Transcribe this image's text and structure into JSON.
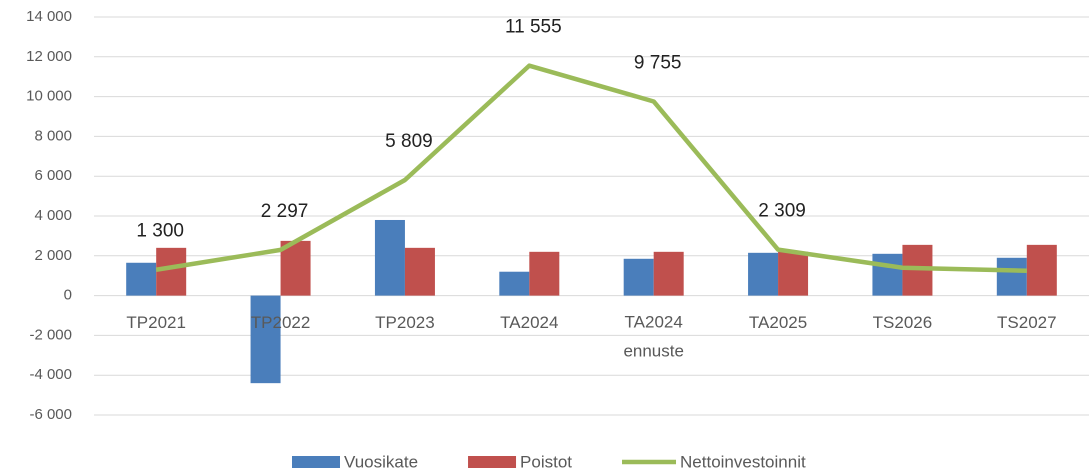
{
  "chart_data": {
    "type": "bar-line",
    "categories": [
      "TP2021",
      "TP2022",
      "TP2023",
      "TA2024",
      "TA2024\nennuste",
      "TA2025",
      "TS2026",
      "TS2027"
    ],
    "series": [
      {
        "name": "Vuosikate",
        "type": "bar",
        "color": "#4a7ebb",
        "values": [
          1650,
          -4400,
          3800,
          1200,
          1850,
          2150,
          2100,
          1900
        ]
      },
      {
        "name": "Poistot",
        "type": "bar",
        "color": "#c0504d",
        "values": [
          2400,
          2750,
          2400,
          2200,
          2200,
          2200,
          2550,
          2550
        ]
      },
      {
        "name": "Nettoinvestoinnit",
        "type": "line",
        "color": "#9bbb59",
        "values": [
          1300,
          2297,
          5809,
          11555,
          9755,
          2309,
          1400,
          1250
        ],
        "value_labels": [
          "1 300",
          "2 297",
          "5 809",
          "11 555",
          "9 755",
          "2 309",
          null,
          null
        ]
      }
    ],
    "ylim": [
      -6000,
      14000
    ],
    "yticks": [
      {
        "value": -6000,
        "label": "-6 000"
      },
      {
        "value": -4000,
        "label": "-4 000"
      },
      {
        "value": -2000,
        "label": "-2 000"
      },
      0,
      {
        "value": 2000,
        "label": "2 000"
      },
      {
        "value": 4000,
        "label": "4 000"
      },
      {
        "value": 6000,
        "label": "6 000"
      },
      {
        "value": 8000,
        "label": "8 000"
      },
      {
        "value": 10000,
        "label": "10 000"
      },
      {
        "value": 12000,
        "label": "12 000"
      },
      {
        "value": 14000,
        "label": "14 000"
      }
    ],
    "grid": true,
    "legend": "bottom"
  }
}
